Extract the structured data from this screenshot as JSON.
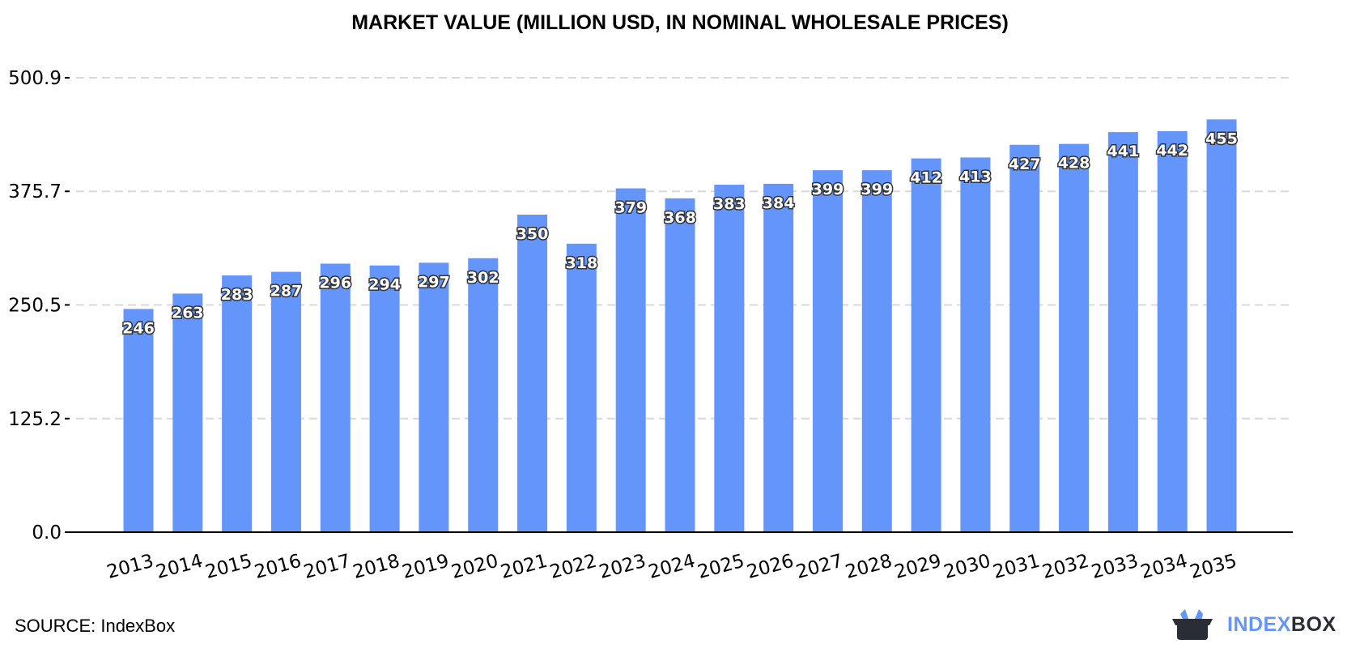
{
  "chart_data": {
    "type": "bar",
    "title": "MARKET VALUE (MILLION USD, IN NOMINAL WHOLESALE PRICES)",
    "categories": [
      "2013",
      "2014",
      "2015",
      "2016",
      "2017",
      "2018",
      "2019",
      "2020",
      "2021",
      "2022",
      "2023",
      "2024",
      "2025",
      "2026",
      "2027",
      "2028",
      "2029",
      "2030",
      "2031",
      "2032",
      "2033",
      "2034",
      "2035"
    ],
    "values": [
      246,
      263,
      283,
      287,
      296,
      294,
      297,
      302,
      350,
      318,
      379,
      368,
      383,
      384,
      399,
      399,
      412,
      413,
      427,
      428,
      441,
      442,
      455
    ],
    "yticks": [
      "0.0",
      "125.2",
      "250.5",
      "375.7",
      "500.9"
    ],
    "ylim": [
      0,
      500.9
    ],
    "grid": true,
    "bar_color": "#6495fa",
    "xlabel": "",
    "ylabel": ""
  },
  "footer": {
    "source": "SOURCE: IndexBox",
    "logo_part1": "INDEX",
    "logo_part2": "BOX"
  }
}
